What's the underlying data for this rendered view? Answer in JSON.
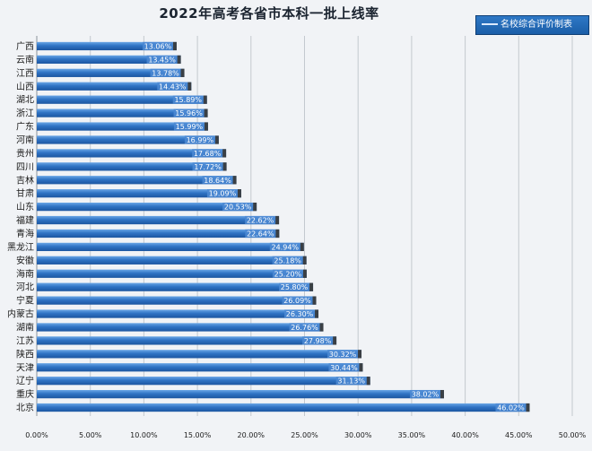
{
  "chart_data": {
    "type": "bar",
    "orientation": "horizontal",
    "title": "2022年高考各省市本科一批上线率",
    "legend": "名校综合评价制表",
    "legend_position": "top-right",
    "grid": true,
    "xlim": [
      0,
      50
    ],
    "x_ticks": [
      "0.00%",
      "5.00%",
      "10.00%",
      "15.00%",
      "20.00%",
      "25.00%",
      "30.00%",
      "35.00%",
      "40.00%",
      "45.00%",
      "50.00%"
    ],
    "categories": [
      "广西",
      "云南",
      "江西",
      "山西",
      "湖北",
      "浙江",
      "广东",
      "河南",
      "贵州",
      "四川",
      "吉林",
      "甘肃",
      "山东",
      "福建",
      "青海",
      "黑龙江",
      "安徽",
      "海南",
      "河北",
      "宁夏",
      "内蒙古",
      "湖南",
      "江苏",
      "陕西",
      "天津",
      "辽宁",
      "重庆",
      "北京"
    ],
    "values": [
      13.06,
      13.45,
      13.78,
      14.43,
      15.89,
      15.96,
      15.99,
      16.99,
      17.68,
      17.72,
      18.64,
      19.09,
      20.53,
      22.62,
      22.64,
      24.94,
      25.18,
      25.2,
      25.8,
      26.09,
      26.3,
      26.76,
      27.98,
      30.32,
      30.44,
      31.13,
      38.02,
      46.02
    ],
    "value_labels": [
      "13.06%",
      "13.45%",
      "13.78%",
      "14.43%",
      "15.89%",
      "15.96%",
      "15.99%",
      "16.99%",
      "17.68%",
      "17.72%",
      "18.64%",
      "19.09%",
      "20.53%",
      "22.62%",
      "22.64%",
      "24.94%",
      "25.18%",
      "25.20%",
      "25.80%",
      "26.09%",
      "26.30%",
      "26.76%",
      "27.98%",
      "30.32%",
      "30.44%",
      "31.13%",
      "38.02%",
      "46.02%"
    ],
    "colors": {
      "bar": "#2d6fc0",
      "bar_light": "#5d9de0",
      "bar_end": "#3a3f44",
      "label_box": "#4c8ad4"
    }
  }
}
